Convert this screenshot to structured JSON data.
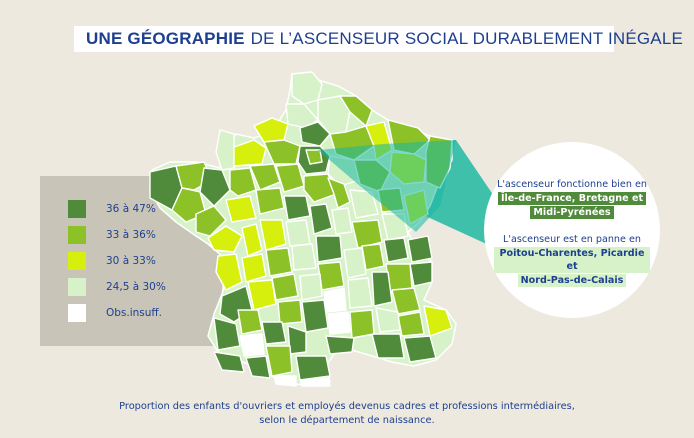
{
  "title": {
    "bold_part": "UNE GÉOGRAPHIE",
    "light_part": "DE L’ASCENSEUR SOCIAL DURABLEMENT INÉGALE"
  },
  "legend": {
    "items": [
      {
        "label": "36 à 47%",
        "color": "#4f8b3a"
      },
      {
        "label": "33 à 36%",
        "color": "#8cc228"
      },
      {
        "label": "30 à 33%",
        "color": "#d6ef0d"
      },
      {
        "label": "24,5 à 30%",
        "color": "#d7f2c8"
      },
      {
        "label": "Obs.insuff.",
        "color": "#ffffff"
      }
    ]
  },
  "callout": {
    "line1": "L'ascenseur fonctionne bien en",
    "good_regions_1": "Île-de-France, Bretagne et",
    "good_regions_2": "Midi-Pyrénées",
    "line2": "L'ascenseur est en panne en",
    "bad_regions_1": "Poitou-Charentes, Picardie et",
    "bad_regions_2": "Nord-Pas-de-Calais"
  },
  "caption": {
    "line1": "Proportion des enfants d'ouvriers et employés devenus cadres et professions intermédiaires,",
    "line2": "selon le département de naissance."
  },
  "colors": {
    "dark_green": "#4f8b3a",
    "mid_green": "#8cc228",
    "yellow_green": "#d6ef0d",
    "pale_green": "#d7f2c8",
    "white": "#ffffff",
    "teal": "#18b7a0",
    "title_blue": "#1d3f8f"
  }
}
